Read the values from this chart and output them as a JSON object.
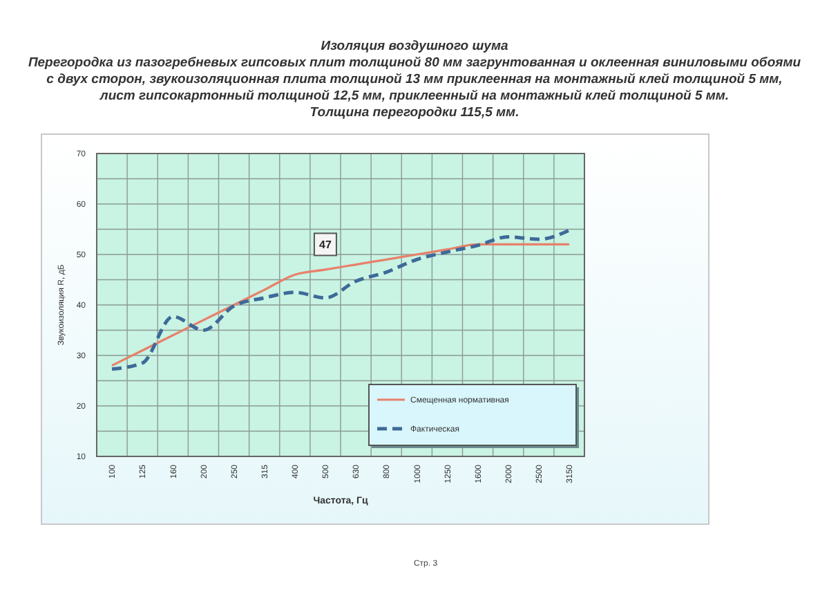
{
  "chart_data": {
    "type": "line",
    "title": "Изоляция воздушного шума",
    "subtitle": "Перегородка из пазогребневых гипсовых плит толщиной 80 мм загрунтованная  и оклеенная виниловыми обоями с двух сторон,  звукоизоляционная плита толщиной 13 мм приклеенная на монтажный клей толщиной 5 мм, лист гипсокартонный толщиной 12,5 мм, приклеенный на монтажный клей толщиной 5 мм.\nТолщина перегородки 115,5 мм.",
    "xlabel": "Частота, Гц",
    "ylabel": "Звукоизоляция R, дБ",
    "categories": [
      "100",
      "125",
      "160",
      "200",
      "250",
      "315",
      "400",
      "500",
      "630",
      "800",
      "1000",
      "1250",
      "1600",
      "2000",
      "2500",
      "3150"
    ],
    "series": [
      {
        "name": "Смещенная нормативная",
        "color": "#e8806a",
        "line_style": "solid",
        "values": [
          28,
          31,
          34,
          37,
          40,
          43,
          46,
          47,
          48,
          49,
          50,
          51,
          52,
          52,
          52,
          52
        ]
      },
      {
        "name": "Фактическая",
        "color": "#3d6a98",
        "line_style": "dashed",
        "values": [
          27.3,
          28.5,
          37.7,
          35,
          39.8,
          41.4,
          42.5,
          41.4,
          44.7,
          46.5,
          49,
          50.5,
          51.8,
          53.5,
          53,
          54.8
        ]
      }
    ],
    "ylim": [
      10,
      70
    ],
    "yticks": [
      10,
      {
        "value": 15,
        "label": null
      },
      20,
      {
        "value": 25,
        "label": null
      },
      30,
      {
        "value": 35,
        "label": null
      },
      40,
      {
        "value": 45,
        "label": null
      },
      50,
      {
        "value": 55,
        "label": null
      },
      60,
      {
        "value": 65,
        "label": null
      },
      70
    ],
    "grid": true,
    "legend": "bottom right",
    "marker": "none",
    "annotations": [
      {
        "text": "47",
        "x": "500",
        "y": 52
      },
      "Стр. 3"
    ]
  }
}
